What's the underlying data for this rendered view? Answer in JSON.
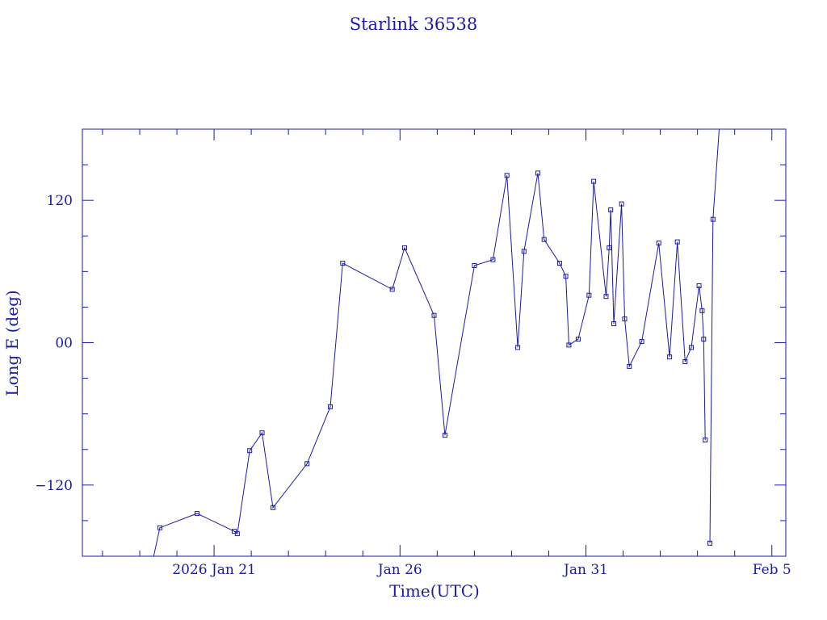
{
  "chart_data": {
    "type": "line",
    "title": "Starlink 36538",
    "xlabel": "Time(UTC)",
    "ylabel": "Long E (deg)",
    "xlim": [
      "2026-01-17 11:00",
      "2026-02-05 09:00"
    ],
    "ylim": [
      -180,
      180
    ],
    "x_tick_labels": [
      {
        "text": "2026 Jan 21",
        "x": "2026-01-21"
      },
      {
        "text": "Jan 26",
        "x": "2026-01-26"
      },
      {
        "text": "Jan 31",
        "x": "2026-01-31"
      },
      {
        "text": "Feb  5",
        "x": "2026-02-05"
      }
    ],
    "y_tick_labels": [
      {
        "text": "120",
        "y": 120
      },
      {
        "text": "00",
        "y": 0
      },
      {
        "text": "−120",
        "y": -120
      }
    ],
    "grid": false,
    "colors": {
      "line": "#1a1aa6",
      "marker": "#1a1aa6",
      "frame": "#1a1aa6"
    },
    "series": [
      {
        "x": [
          "2026-01-19 09:00",
          "2026-01-19 13:00",
          "2026-01-20 13:00",
          "2026-01-21 13:00",
          "2026-01-21 15:00",
          "2026-01-21 23:00",
          "2026-01-22 07:00",
          "2026-01-22 14:00",
          "2026-01-23 12:00",
          "2026-01-24 03:00",
          "2026-01-24 11:00",
          "2026-01-25 19:00",
          "2026-01-26 03:00",
          "2026-01-26 22:00",
          "2026-01-27 05:00",
          "2026-01-28 00:00",
          "2026-01-28 12:00",
          "2026-01-28 21:00",
          "2026-01-29 04:00",
          "2026-01-29 08:00",
          "2026-01-29 17:00",
          "2026-01-29 21:00",
          "2026-01-30 07:00",
          "2026-01-30 11:00",
          "2026-01-30 13:00",
          "2026-01-30 19:00",
          "2026-01-31 02:00",
          "2026-01-31 05:00",
          "2026-01-31 13:00",
          "2026-01-31 15:00",
          "2026-01-31 16:00",
          "2026-01-31 18:00",
          "2026-01-31 23:00",
          "2026-02-01 01:00",
          "2026-02-01 04:00",
          "2026-02-01 12:00",
          "2026-02-01 23:00",
          "2026-02-02 06:00",
          "2026-02-02 11:00",
          "2026-02-02 16:00",
          "2026-02-02 20:00",
          "2026-02-03 01:00",
          "2026-02-03 03:00",
          "2026-02-03 04:00",
          "2026-02-03 05:00",
          "2026-02-03 08:00",
          "2026-02-03 10:00",
          "2026-02-03 14:00",
          "2026-02-03 17:00"
        ],
        "y": [
          -180,
          -156,
          -144,
          -159,
          -161,
          -91,
          -76,
          -139,
          -102,
          -54,
          67,
          45,
          80,
          23,
          -78,
          65,
          70,
          141,
          -4,
          77,
          143,
          87,
          67,
          56,
          -2,
          3,
          40,
          136,
          39,
          80,
          112,
          16,
          117,
          20,
          -20,
          1,
          84,
          -12,
          85,
          -16,
          -4,
          48,
          27,
          3,
          -82,
          -169,
          104,
          180,
          180
        ],
        "segments": [
          [
            0,
            44
          ],
          [
            45,
            47
          ]
        ]
      }
    ]
  }
}
